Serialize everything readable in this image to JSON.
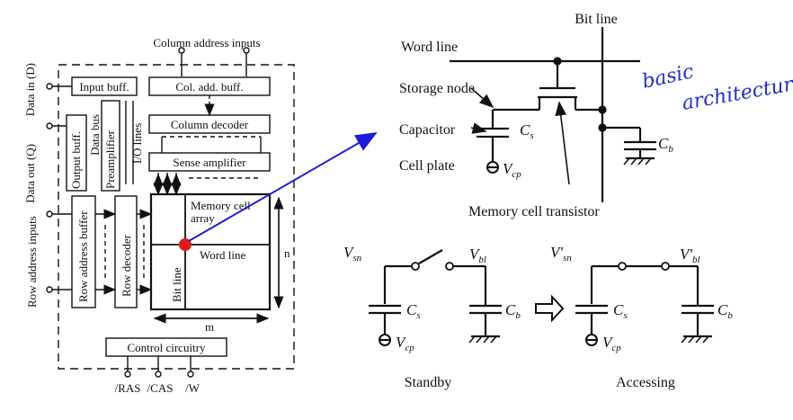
{
  "dram_block": {
    "column_address_inputs": "Column address inputs",
    "data_in": "Data in (D)",
    "data_out": "Data out (Q)",
    "row_address_inputs": "Row address inputs",
    "input_buff": "Input buff.",
    "col_add_buff": "Col. add. buff.",
    "column_decoder": "Column decoder",
    "output_buff": "Output buff.",
    "preamplifier": "Preamplifier",
    "data_bus": "Data bus",
    "io_lines": "I/O lines",
    "sense_amplifier": "Sense amplifier",
    "row_address_buffer": "Row address buffer",
    "row_decoder": "Row decoder",
    "memory_cell_array": [
      "Memory cell",
      "array"
    ],
    "word_line": "Word line",
    "bit_line": "Bit line",
    "dim_m": "m",
    "dim_n": "n",
    "control_circuitry": "Control circuitry",
    "pins": [
      "/RAS",
      "/CAS",
      "/W"
    ]
  },
  "cell": {
    "bit_line": "Bit line",
    "word_line": "Word line",
    "storage_node": "Storage node",
    "capacitor": "Capacitor",
    "cell_plate": "Cell plate",
    "cs": "C",
    "cs_sub": "s",
    "cb": "C",
    "cb_sub": "b",
    "vcp": "V",
    "vcp_sub": "cp",
    "transistor": "Memory cell transistor"
  },
  "handwritten_note": [
    "basic",
    "architecture"
  ],
  "standby": {
    "vsn": "V",
    "vsn_sub": "sn",
    "vbl": "V",
    "vbl_sub": "bl",
    "cs": "C",
    "cs_sub": "s",
    "cb": "C",
    "cb_sub": "b",
    "vcp": "V",
    "vcp_sub": "cp",
    "caption": "Standby"
  },
  "accessing": {
    "vsn": "V'",
    "vsn_sub": "sn",
    "vbl": "V'",
    "vbl_sub": "bl",
    "cs": "C",
    "cs_sub": "s",
    "cb": "C",
    "cb_sub": "b",
    "vcp": "V",
    "vcp_sub": "cp",
    "caption": "Accessing"
  },
  "colors": {
    "ink": "#111111",
    "pointer_arrow": "#1c1cd6",
    "highlight_dot": "#e01b1b",
    "handwriting": "#1f2fc6"
  }
}
